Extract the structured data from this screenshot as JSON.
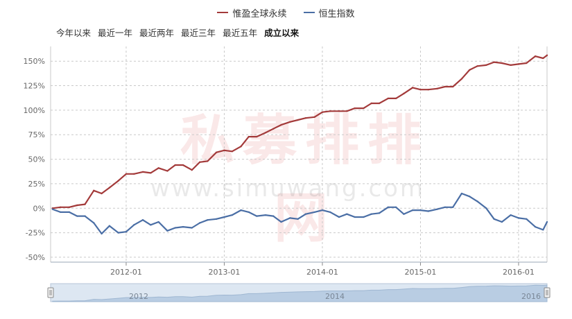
{
  "legend": [
    {
      "label": "惟盈全球永续",
      "color": "#a33a3a"
    },
    {
      "label": "恒生指数",
      "color": "#4a6ea5"
    }
  ],
  "range_tabs": [
    "今年以来",
    "最近一年",
    "最近两年",
    "最近三年",
    "最近五年",
    "成立以来"
  ],
  "active_tab": "成立以来",
  "watermark": {
    "text_cn": "私募排排网",
    "text_url": "www.simuwang.com"
  },
  "colors": {
    "fund": "#a33a3a",
    "index": "#4a6ea5",
    "grid": "#c9c9c9",
    "axis": "#9aa6b6"
  },
  "chart_data": {
    "type": "line",
    "grid": true,
    "legend_position": "top-center",
    "ylim": [
      -55,
      165
    ],
    "y_ticks": [
      "-50%",
      "-25%",
      "0%",
      "25%",
      "50%",
      "75%",
      "100%",
      "125%",
      "150%"
    ],
    "y_tick_values": [
      -50,
      -25,
      0,
      25,
      50,
      75,
      100,
      125,
      150
    ],
    "x_range": [
      2011.23,
      2016.29
    ],
    "x_ticks": [
      {
        "label": "2012-01",
        "value": 2012.0
      },
      {
        "label": "2013-01",
        "value": 2013.0
      },
      {
        "label": "2014-01",
        "value": 2014.0
      },
      {
        "label": "2015-01",
        "value": 2015.0
      },
      {
        "label": "2016-01",
        "value": 2016.0
      }
    ],
    "x": [
      2011.25,
      2011.33,
      2011.42,
      2011.5,
      2011.58,
      2011.67,
      2011.75,
      2011.83,
      2011.92,
      2012.0,
      2012.08,
      2012.17,
      2012.25,
      2012.33,
      2012.42,
      2012.5,
      2012.58,
      2012.67,
      2012.75,
      2012.83,
      2012.92,
      2013.0,
      2013.08,
      2013.17,
      2013.25,
      2013.33,
      2013.42,
      2013.5,
      2013.58,
      2013.67,
      2013.75,
      2013.83,
      2013.92,
      2014.0,
      2014.08,
      2014.17,
      2014.25,
      2014.33,
      2014.42,
      2014.5,
      2014.58,
      2014.67,
      2014.75,
      2014.83,
      2014.92,
      2015.0,
      2015.08,
      2015.17,
      2015.25,
      2015.33,
      2015.42,
      2015.5,
      2015.58,
      2015.67,
      2015.75,
      2015.83,
      2015.92,
      2016.0,
      2016.08,
      2016.17,
      2016.25,
      2016.29
    ],
    "series": [
      {
        "name": "惟盈全球永续",
        "color": "#a33a3a",
        "values": [
          0,
          1,
          1,
          3,
          4,
          18,
          15,
          21,
          28,
          35,
          35,
          37,
          36,
          41,
          38,
          44,
          44,
          39,
          47,
          48,
          57,
          59,
          58,
          63,
          73,
          73,
          77,
          81,
          85,
          88,
          90,
          92,
          93,
          98,
          99,
          99,
          99,
          102,
          102,
          107,
          107,
          112,
          112,
          117,
          123,
          121,
          121,
          122,
          124,
          124,
          132,
          141,
          145,
          146,
          149,
          148,
          146,
          147,
          148,
          155,
          153,
          156
        ]
      },
      {
        "name": "恒生指数",
        "color": "#4a6ea5",
        "values": [
          -1,
          -4,
          -4,
          -8,
          -8,
          -15,
          -26,
          -18,
          -25,
          -24,
          -17,
          -12,
          -17,
          -14,
          -23,
          -20,
          -19,
          -20,
          -15,
          -12,
          -11,
          -9,
          -7,
          -2,
          -4,
          -8,
          -7,
          -8,
          -14,
          -10,
          -11,
          -6,
          -4,
          -2,
          -4,
          -9,
          -6,
          -9,
          -9,
          -6,
          -5,
          1,
          1,
          -6,
          -2,
          -2,
          -3,
          -1,
          1,
          1,
          15,
          12,
          7,
          0,
          -11,
          -14,
          -7,
          -10,
          -11,
          -19,
          -22,
          -14
        ]
      }
    ]
  }
}
